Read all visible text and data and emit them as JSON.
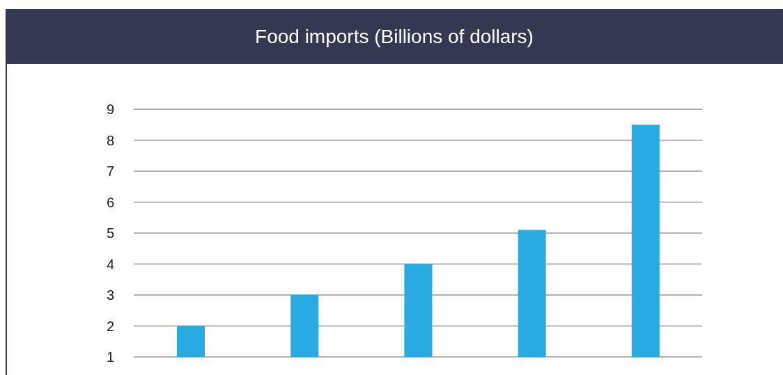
{
  "chart_data": {
    "type": "bar",
    "title": "Food imports (Billions of dollars)",
    "categories": [
      null,
      null,
      null,
      null,
      null
    ],
    "values": [
      2,
      3,
      4,
      5.1,
      8.5
    ],
    "color": "#29abe2",
    "ylim": [
      1,
      9
    ],
    "yticks": [
      1,
      2,
      3,
      4,
      5,
      6,
      7,
      8,
      9
    ],
    "grid": "y"
  }
}
